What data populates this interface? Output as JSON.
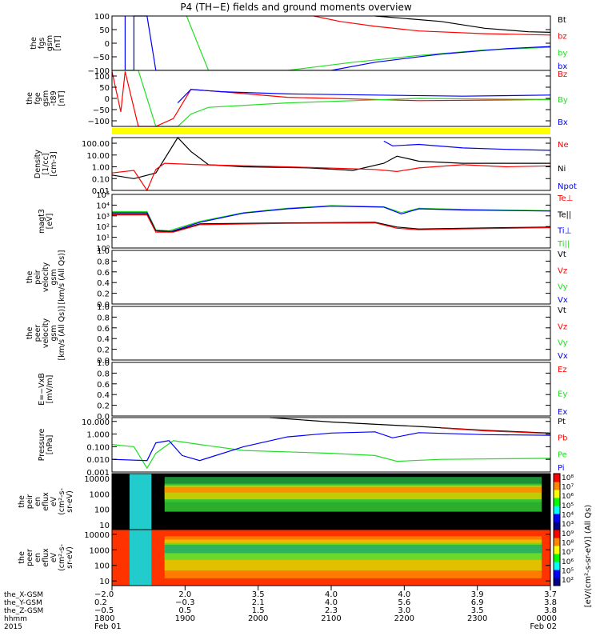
{
  "title": "P4 (TH−E) fields and ground moments overview",
  "colors": {
    "black": "#000000",
    "red": "#ff0000",
    "green": "#22dd22",
    "blue": "#0000ff",
    "yellow": "#ffff00"
  },
  "chart_data": [
    {
      "type": "line",
      "id": "bfgs",
      "ylabel_lines": [
        "the",
        "fgs",
        "gsm",
        "[nT]"
      ],
      "ylim": [
        -100,
        100
      ],
      "yticks": [
        "100",
        "50",
        "0",
        "−50",
        "−100"
      ],
      "yvals": [
        100,
        50,
        0,
        -50,
        -100
      ],
      "legend": [
        {
          "name": "Bt",
          "color": "black"
        },
        {
          "name": "bz",
          "color": "red"
        },
        {
          "name": "by",
          "color": "green"
        },
        {
          "name": "bx",
          "color": "blue"
        }
      ],
      "series": [
        {
          "name": "Bt",
          "color": "black",
          "x": [
            0,
            0.55,
            0.6,
            0.75,
            0.85,
            0.95,
            1.0
          ],
          "y": [
            null,
            null,
            100,
            80,
            55,
            42,
            40
          ]
        },
        {
          "name": "bz",
          "color": "red",
          "x": [
            0,
            0.46,
            0.52,
            0.6,
            0.7,
            0.85,
            1.0
          ],
          "y": [
            null,
            100,
            80,
            62,
            45,
            35,
            30
          ]
        },
        {
          "name": "by",
          "color": "green",
          "x": [
            0.17,
            0.2,
            0.22,
            0.4,
            0.55,
            0.7,
            0.85,
            1.0
          ],
          "y": [
            100,
            -20,
            -100,
            -100,
            -70,
            -45,
            -25,
            -15
          ]
        },
        {
          "name": "bx",
          "color": "blue",
          "x": [
            0.03,
            0.03,
            0.05,
            0.05,
            0.08,
            0.1,
            0.5,
            0.6,
            0.75,
            0.9,
            1.0
          ],
          "y": [
            100,
            -100,
            -100,
            100,
            100,
            -100,
            -100,
            -70,
            -40,
            -20,
            -12
          ]
        }
      ]
    },
    {
      "type": "line",
      "id": "bfge",
      "ylabel_lines": [
        "the",
        "fge",
        "gsm",
        "-t89",
        "[nT]"
      ],
      "ylim": [
        -125,
        125
      ],
      "yticks": [
        "100",
        "50",
        "0",
        "−50",
        "−100"
      ],
      "yvals": [
        100,
        50,
        0,
        -50,
        -100
      ],
      "legend": [
        {
          "name": "Bz",
          "color": "red"
        },
        {
          "name": "By",
          "color": "green"
        },
        {
          "name": "Bx",
          "color": "blue"
        }
      ],
      "series": [
        {
          "name": "Bz",
          "color": "red",
          "x": [
            0.0,
            0.02,
            0.03,
            0.06,
            0.1,
            0.14,
            0.18,
            0.25,
            0.4,
            0.7,
            1.0
          ],
          "y": [
            120,
            -60,
            120,
            -125,
            -125,
            -90,
            40,
            30,
            5,
            -10,
            -5
          ]
        },
        {
          "name": "By",
          "color": "green",
          "x": [
            0.0,
            0.06,
            0.1,
            0.15,
            0.18,
            0.22,
            0.4,
            0.55,
            0.7,
            1.0
          ],
          "y": [
            125,
            125,
            -125,
            -125,
            -70,
            -40,
            -20,
            -10,
            0,
            -5
          ]
        },
        {
          "name": "Bx",
          "color": "blue",
          "x": [
            0.0,
            0.05,
            0.1,
            0.15,
            0.18,
            0.25,
            0.4,
            0.6,
            0.8,
            1.0
          ],
          "y": [
            null,
            null,
            null,
            -20,
            40,
            30,
            20,
            15,
            10,
            15
          ]
        }
      ]
    },
    {
      "type": "line",
      "id": "density",
      "ylabel_lines": [
        "Density",
        "[1/cc]",
        "[cm-3]"
      ],
      "ylim": [
        0.01,
        300
      ],
      "log": true,
      "yticks": [
        "100.00",
        "10.00",
        "1.00",
        "0.10",
        "0.01"
      ],
      "yvals": [
        100,
        10,
        1,
        0.1,
        0.01
      ],
      "legend": [
        {
          "name": "Ne",
          "color": "red"
        },
        {
          "name": "Ni",
          "color": "black"
        },
        {
          "name": "Npot",
          "color": "blue"
        }
      ],
      "series": [
        {
          "name": "Ni",
          "color": "black",
          "x": [
            0,
            0.05,
            0.1,
            0.15,
            0.18,
            0.22,
            0.3,
            0.45,
            0.55,
            0.62,
            0.65,
            0.7,
            0.8,
            1.0
          ],
          "y": [
            0.2,
            0.1,
            0.3,
            300,
            20,
            1.5,
            1,
            0.8,
            0.5,
            2,
            8,
            3,
            2,
            2
          ]
        },
        {
          "name": "Ne",
          "color": "red",
          "x": [
            0,
            0.05,
            0.08,
            0.1,
            0.12,
            0.2,
            0.4,
            0.6,
            0.65,
            0.7,
            0.8,
            0.9,
            1.0
          ],
          "y": [
            0.3,
            0.5,
            0.01,
            0.6,
            2,
            1.5,
            1,
            0.6,
            0.4,
            0.8,
            1.5,
            1,
            1.2
          ]
        },
        {
          "name": "Npot",
          "color": "blue",
          "x": [
            0.62,
            0.64,
            0.7,
            0.8,
            0.9,
            1.0
          ],
          "y": [
            150,
            60,
            80,
            40,
            30,
            25
          ]
        }
      ]
    },
    {
      "type": "line",
      "id": "temp",
      "ylabel_lines": [
        "magt3",
        "[eV]"
      ],
      "ylim": [
        1,
        100000
      ],
      "log": true,
      "yticks": [
        "10⁵",
        "10⁴",
        "10³",
        "10²",
        "10¹",
        "10⁰"
      ],
      "yvals": [
        100000,
        10000,
        1000,
        100,
        10,
        1
      ],
      "legend": [
        {
          "name": "Te⊥",
          "color": "red"
        },
        {
          "name": "Te||",
          "color": "black"
        },
        {
          "name": "Ti⊥",
          "color": "blue"
        },
        {
          "name": "Ti||",
          "color": "green"
        }
      ],
      "series": [
        {
          "name": "Ti||",
          "color": "green",
          "x": [
            0,
            0.08,
            0.1,
            0.13,
            0.2,
            0.3,
            0.4,
            0.5,
            0.62,
            0.66,
            0.7,
            0.8,
            1.0
          ],
          "y": [
            2500,
            2500,
            50,
            40,
            300,
            2000,
            5000,
            9000,
            7000,
            2000,
            5000,
            4000,
            3000
          ]
        },
        {
          "name": "Ti⊥",
          "color": "blue",
          "x": [
            0,
            0.08,
            0.1,
            0.13,
            0.2,
            0.3,
            0.4,
            0.5,
            0.62,
            0.66,
            0.7,
            0.8,
            1.0
          ],
          "y": [
            2000,
            2000,
            40,
            30,
            250,
            1800,
            4500,
            8000,
            6500,
            1500,
            4500,
            3500,
            2800
          ]
        },
        {
          "name": "Te||",
          "color": "black",
          "x": [
            0,
            0.08,
            0.1,
            0.14,
            0.2,
            0.4,
            0.6,
            0.65,
            0.7,
            0.8,
            1.0
          ],
          "y": [
            1500,
            1500,
            40,
            35,
            180,
            220,
            250,
            90,
            60,
            70,
            90
          ]
        },
        {
          "name": "Te⊥",
          "color": "red",
          "x": [
            0,
            0.08,
            0.1,
            0.14,
            0.2,
            0.4,
            0.6,
            0.65,
            0.7,
            0.8,
            1.0
          ],
          "y": [
            1200,
            1200,
            30,
            30,
            150,
            200,
            220,
            70,
            50,
            60,
            80
          ]
        }
      ]
    },
    {
      "type": "line",
      "id": "peir_vel",
      "ylabel_lines": [
        "the",
        "peir",
        "velocity",
        "gsm",
        "[km/s (All Qs)]"
      ],
      "ylim": [
        0,
        1
      ],
      "yticks": [
        "1.0",
        "0.8",
        "0.6",
        "0.4",
        "0.2",
        "0.0"
      ],
      "yvals": [
        1,
        0.8,
        0.6,
        0.4,
        0.2,
        0
      ],
      "legend": [
        {
          "name": "Vt",
          "color": "black"
        },
        {
          "name": "Vz",
          "color": "red"
        },
        {
          "name": "Vy",
          "color": "green"
        },
        {
          "name": "Vx",
          "color": "blue"
        }
      ],
      "series": []
    },
    {
      "type": "line",
      "id": "peer_vel",
      "ylabel_lines": [
        "the",
        "peer",
        "velocity",
        "gsm",
        "[km/s (All Qs)]"
      ],
      "ylim": [
        0,
        1
      ],
      "yticks": [
        "1.0",
        "0.8",
        "0.6",
        "0.4",
        "0.2",
        "0.0"
      ],
      "yvals": [
        1,
        0.8,
        0.6,
        0.4,
        0.2,
        0
      ],
      "legend": [
        {
          "name": "Vt",
          "color": "black"
        },
        {
          "name": "Vz",
          "color": "red"
        },
        {
          "name": "Vy",
          "color": "green"
        },
        {
          "name": "Vx",
          "color": "blue"
        }
      ],
      "series": []
    },
    {
      "type": "line",
      "id": "efield",
      "ylabel_lines": [
        "E=−VxB",
        "[mV/m]"
      ],
      "ylim": [
        0,
        1
      ],
      "yticks": [
        "1.0",
        "0.8",
        "0.6",
        "0.4",
        "0.2",
        "0.0"
      ],
      "yvals": [
        1,
        0.8,
        0.6,
        0.4,
        0.2,
        0
      ],
      "legend": [
        {
          "name": "Ez",
          "color": "red"
        },
        {
          "name": "Ey",
          "color": "green"
        },
        {
          "name": "Ex",
          "color": "blue"
        }
      ],
      "series": []
    },
    {
      "type": "line",
      "id": "pressure",
      "ylabel_lines": [
        "Pressure",
        "[nPa]"
      ],
      "ylim": [
        0.001,
        20
      ],
      "log": true,
      "yticks": [
        "10.000",
        "1.000",
        "0.100",
        "0.010",
        "0.001"
      ],
      "yvals": [
        10,
        1,
        0.1,
        0.01,
        0.001
      ],
      "legend": [
        {
          "name": "Pt",
          "color": "black"
        },
        {
          "name": "Pb",
          "color": "red"
        },
        {
          "name": "Pe",
          "color": "green"
        },
        {
          "name": "Pi",
          "color": "blue"
        }
      ],
      "series": [
        {
          "name": "Pt",
          "color": "black",
          "x": [
            0.36,
            0.5,
            0.7,
            0.85,
            1.0
          ],
          "y": [
            20,
            9,
            4,
            2,
            1.2
          ]
        },
        {
          "name": "Pb",
          "color": "red",
          "x": [
            0.75,
            0.85,
            1.0
          ],
          "y": [
            3,
            1.8,
            1.1
          ]
        },
        {
          "name": "Pe",
          "color": "green",
          "x": [
            0,
            0.05,
            0.08,
            0.1,
            0.14,
            0.2,
            0.3,
            0.5,
            0.6,
            0.65,
            0.75,
            1.0
          ],
          "y": [
            0.15,
            0.1,
            0.002,
            0.03,
            0.3,
            0.15,
            0.05,
            0.03,
            0.02,
            0.007,
            0.01,
            0.012
          ]
        },
        {
          "name": "Pi",
          "color": "blue",
          "x": [
            0,
            0.08,
            0.1,
            0.13,
            0.16,
            0.2,
            0.3,
            0.4,
            0.5,
            0.6,
            0.64,
            0.7,
            0.85,
            1.0
          ],
          "y": [
            0.01,
            0.008,
            0.2,
            0.3,
            0.02,
            0.008,
            0.1,
            0.6,
            1.2,
            1.5,
            0.5,
            1.3,
            0.9,
            0.8
          ]
        }
      ]
    },
    {
      "type": "heatmap",
      "id": "peir_flux",
      "ylabel_lines": [
        "the",
        "peir",
        "en",
        "eflux",
        "eV",
        "(cm²-s-",
        "sr-eV)"
      ],
      "ylim": [
        5,
        20000
      ],
      "log": true,
      "yticks": [
        "10000",
        "1000",
        "100",
        "10"
      ],
      "yvals": [
        10000,
        1000,
        100,
        10
      ],
      "colorbar": {
        "ticks": [
          "10⁸",
          "10⁷",
          "10⁶",
          "10⁵",
          "10⁴",
          "10³"
        ]
      }
    },
    {
      "type": "heatmap",
      "id": "peer_flux",
      "ylabel_lines": [
        "the",
        "peer",
        "en",
        "eflux",
        "eV",
        "(cm²-s-",
        "sr-eV)"
      ],
      "ylim": [
        5,
        20000
      ],
      "log": true,
      "yticks": [
        "10000",
        "1000",
        "100",
        "10"
      ],
      "yvals": [
        10000,
        1000,
        100,
        10
      ],
      "colorbar": {
        "ticks": [
          "10⁹",
          "10⁸",
          "10⁷",
          "10⁶",
          "10⁵",
          "10²"
        ]
      }
    }
  ],
  "colorbar_label": "[eV/(cm²-s-sr-eV)] (All Qs)",
  "xaxis": {
    "row_labels": [
      "the_X-GSM",
      "the_Y-GSM",
      "the_Z-GSM",
      "hhmm",
      "2015"
    ],
    "columns": [
      [
        "−2.0",
        "0.2",
        "−0.5",
        "1800",
        "Feb 01"
      ],
      [
        "2.0",
        "−0.3",
        "0.5",
        "1900",
        ""
      ],
      [
        "3.5",
        "2.1",
        "1.5",
        "2000",
        ""
      ],
      [
        "4.0",
        "4.0",
        "2.3",
        "2100",
        ""
      ],
      [
        "4.0",
        "5.6",
        "3.0",
        "2200",
        ""
      ],
      [
        "3.9",
        "6.9",
        "3.5",
        "2300",
        ""
      ],
      [
        "3.7",
        "3.8",
        "3.8",
        "0000",
        "Feb 02"
      ]
    ]
  }
}
